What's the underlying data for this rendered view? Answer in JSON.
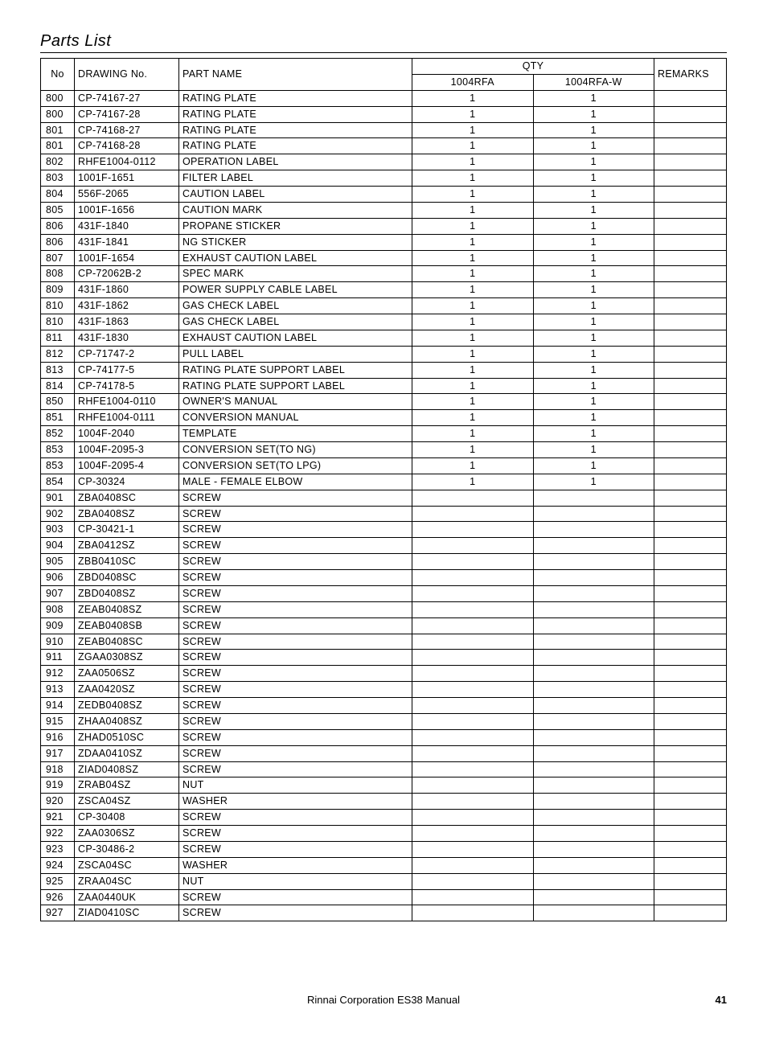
{
  "title": "Parts List",
  "headers": {
    "no": "No",
    "drawing": "DRAWING No.",
    "part": "PART NAME",
    "qty": "QTY",
    "q1": "1004RFA",
    "q2": "1004RFA-W",
    "remarks": "REMARKS"
  },
  "rows": [
    {
      "no": "800",
      "drw": "CP-74167-27",
      "part": "RATING PLATE",
      "q1": "1",
      "q2": "1",
      "rem": ""
    },
    {
      "no": "800",
      "drw": "CP-74167-28",
      "part": "RATING PLATE",
      "q1": "1",
      "q2": "1",
      "rem": ""
    },
    {
      "no": "801",
      "drw": "CP-74168-27",
      "part": "RATING PLATE",
      "q1": "1",
      "q2": "1",
      "rem": ""
    },
    {
      "no": "801",
      "drw": "CP-74168-28",
      "part": "RATING PLATE",
      "q1": "1",
      "q2": "1",
      "rem": ""
    },
    {
      "no": "802",
      "drw": "RHFE1004-0112",
      "part": "OPERATION LABEL",
      "q1": "1",
      "q2": "1",
      "rem": ""
    },
    {
      "no": "803",
      "drw": "1001F-1651",
      "part": "FILTER LABEL",
      "q1": "1",
      "q2": "1",
      "rem": ""
    },
    {
      "no": "804",
      "drw": "556F-2065",
      "part": "CAUTION LABEL",
      "q1": "1",
      "q2": "1",
      "rem": ""
    },
    {
      "no": "805",
      "drw": "1001F-1656",
      "part": "CAUTION MARK",
      "q1": "1",
      "q2": "1",
      "rem": ""
    },
    {
      "no": "806",
      "drw": "431F-1840",
      "part": "PROPANE STICKER",
      "q1": "1",
      "q2": "1",
      "rem": ""
    },
    {
      "no": "806",
      "drw": "431F-1841",
      "part": "NG STICKER",
      "q1": "1",
      "q2": "1",
      "rem": ""
    },
    {
      "no": "807",
      "drw": "1001F-1654",
      "part": "EXHAUST CAUTION LABEL",
      "q1": "1",
      "q2": "1",
      "rem": ""
    },
    {
      "no": "808",
      "drw": "CP-72062B-2",
      "part": "SPEC MARK",
      "q1": "1",
      "q2": "1",
      "rem": ""
    },
    {
      "no": "809",
      "drw": "431F-1860",
      "part": "POWER SUPPLY CABLE LABEL",
      "q1": "1",
      "q2": "1",
      "rem": ""
    },
    {
      "no": "810",
      "drw": "431F-1862",
      "part": "GAS CHECK LABEL",
      "q1": "1",
      "q2": "1",
      "rem": ""
    },
    {
      "no": "810",
      "drw": "431F-1863",
      "part": "GAS CHECK LABEL",
      "q1": "1",
      "q2": "1",
      "rem": ""
    },
    {
      "no": "811",
      "drw": "431F-1830",
      "part": "EXHAUST CAUTION LABEL",
      "q1": "1",
      "q2": "1",
      "rem": ""
    },
    {
      "no": "812",
      "drw": "CP-71747-2",
      "part": "PULL LABEL",
      "q1": "1",
      "q2": "1",
      "rem": ""
    },
    {
      "no": "813",
      "drw": "CP-74177-5",
      "part": "RATING PLATE SUPPORT LABEL",
      "q1": "1",
      "q2": "1",
      "rem": ""
    },
    {
      "no": "814",
      "drw": "CP-74178-5",
      "part": "RATING PLATE SUPPORT LABEL",
      "q1": "1",
      "q2": "1",
      "rem": ""
    },
    {
      "no": "850",
      "drw": "RHFE1004-0110",
      "part": "OWNER'S MANUAL",
      "q1": "1",
      "q2": "1",
      "rem": ""
    },
    {
      "no": "851",
      "drw": "RHFE1004-0111",
      "part": "CONVERSION MANUAL",
      "q1": "1",
      "q2": "1",
      "rem": ""
    },
    {
      "no": "852",
      "drw": "1004F-2040",
      "part": "TEMPLATE",
      "q1": "1",
      "q2": "1",
      "rem": ""
    },
    {
      "no": "853",
      "drw": "1004F-2095-3",
      "part": "CONVERSION SET(TO NG)",
      "q1": "1",
      "q2": "1",
      "rem": ""
    },
    {
      "no": "853",
      "drw": "1004F-2095-4",
      "part": "CONVERSION SET(TO LPG)",
      "q1": "1",
      "q2": "1",
      "rem": ""
    },
    {
      "no": "854",
      "drw": "CP-30324",
      "part": "MALE - FEMALE ELBOW",
      "q1": "1",
      "q2": "1",
      "rem": ""
    },
    {
      "no": "901",
      "drw": "ZBA0408SC",
      "part": "SCREW",
      "q1": "",
      "q2": "",
      "rem": ""
    },
    {
      "no": "902",
      "drw": "ZBA0408SZ",
      "part": "SCREW",
      "q1": "",
      "q2": "",
      "rem": ""
    },
    {
      "no": "903",
      "drw": "CP-30421-1",
      "part": "SCREW",
      "q1": "",
      "q2": "",
      "rem": ""
    },
    {
      "no": "904",
      "drw": "ZBA0412SZ",
      "part": "SCREW",
      "q1": "",
      "q2": "",
      "rem": ""
    },
    {
      "no": "905",
      "drw": "ZBB0410SC",
      "part": "SCREW",
      "q1": "",
      "q2": "",
      "rem": ""
    },
    {
      "no": "906",
      "drw": "ZBD0408SC",
      "part": "SCREW",
      "q1": "",
      "q2": "",
      "rem": ""
    },
    {
      "no": "907",
      "drw": "ZBD0408SZ",
      "part": "SCREW",
      "q1": "",
      "q2": "",
      "rem": ""
    },
    {
      "no": "908",
      "drw": "ZEAB0408SZ",
      "part": "SCREW",
      "q1": "",
      "q2": "",
      "rem": ""
    },
    {
      "no": "909",
      "drw": "ZEAB0408SB",
      "part": "SCREW",
      "q1": "",
      "q2": "",
      "rem": ""
    },
    {
      "no": "910",
      "drw": "ZEAB0408SC",
      "part": "SCREW",
      "q1": "",
      "q2": "",
      "rem": ""
    },
    {
      "no": "911",
      "drw": "ZGAA0308SZ",
      "part": "SCREW",
      "q1": "",
      "q2": "",
      "rem": ""
    },
    {
      "no": "912",
      "drw": "ZAA0506SZ",
      "part": "SCREW",
      "q1": "",
      "q2": "",
      "rem": ""
    },
    {
      "no": "913",
      "drw": "ZAA0420SZ",
      "part": "SCREW",
      "q1": "",
      "q2": "",
      "rem": ""
    },
    {
      "no": "914",
      "drw": "ZEDB0408SZ",
      "part": "SCREW",
      "q1": "",
      "q2": "",
      "rem": ""
    },
    {
      "no": "915",
      "drw": "ZHAA0408SZ",
      "part": "SCREW",
      "q1": "",
      "q2": "",
      "rem": ""
    },
    {
      "no": "916",
      "drw": "ZHAD0510SC",
      "part": "SCREW",
      "q1": "",
      "q2": "",
      "rem": ""
    },
    {
      "no": "917",
      "drw": "ZDAA0410SZ",
      "part": "SCREW",
      "q1": "",
      "q2": "",
      "rem": ""
    },
    {
      "no": "918",
      "drw": "ZIAD0408SZ",
      "part": "SCREW",
      "q1": "",
      "q2": "",
      "rem": ""
    },
    {
      "no": "919",
      "drw": "ZRAB04SZ",
      "part": "NUT",
      "q1": "",
      "q2": "",
      "rem": ""
    },
    {
      "no": "920",
      "drw": "ZSCA04SZ",
      "part": "WASHER",
      "q1": "",
      "q2": "",
      "rem": ""
    },
    {
      "no": "921",
      "drw": "CP-30408",
      "part": "SCREW",
      "q1": "",
      "q2": "",
      "rem": ""
    },
    {
      "no": "922",
      "drw": "ZAA0306SZ",
      "part": "SCREW",
      "q1": "",
      "q2": "",
      "rem": ""
    },
    {
      "no": "923",
      "drw": "CP-30486-2",
      "part": "SCREW",
      "q1": "",
      "q2": "",
      "rem": ""
    },
    {
      "no": "924",
      "drw": "ZSCA04SC",
      "part": "WASHER",
      "q1": "",
      "q2": "",
      "rem": ""
    },
    {
      "no": "925",
      "drw": "ZRAA04SC",
      "part": "NUT",
      "q1": "",
      "q2": "",
      "rem": ""
    },
    {
      "no": "926",
      "drw": "ZAA0440UK",
      "part": "SCREW",
      "q1": "",
      "q2": "",
      "rem": ""
    },
    {
      "no": "927",
      "drw": "ZIAD0410SC",
      "part": "SCREW",
      "q1": "",
      "q2": "",
      "rem": ""
    }
  ],
  "footer": {
    "center": "Rinnai Corporation ES38 Manual",
    "page": "41"
  }
}
